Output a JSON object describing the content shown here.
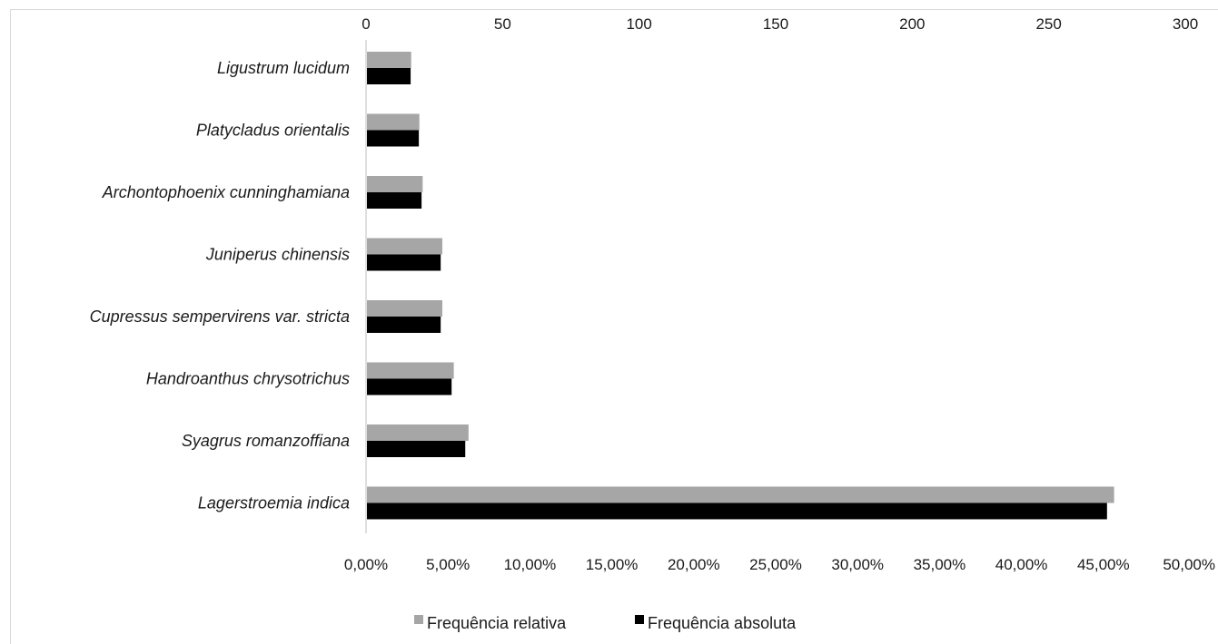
{
  "chart_data": {
    "type": "bar",
    "orientation": "horizontal",
    "categories": [
      "Ligustrum lucidum",
      "Platycladus orientalis",
      "Archontophoenix cunninghamiana",
      "Juniperus chinensis",
      "Cupressus sempervirens var. stricta",
      "Handroanthus chrysotrichus",
      "Syagrus romanzoffiana",
      "Lagerstroemia indica"
    ],
    "series": [
      {
        "name": "Frequência relativa",
        "axis": "bottom",
        "color": "#a6a6a6",
        "values": [
          2.7,
          3.2,
          3.4,
          4.6,
          4.6,
          5.3,
          6.2,
          45.6
        ]
      },
      {
        "name": "Frequência absoluta",
        "axis": "top",
        "color": "#000000",
        "values": [
          16,
          19,
          20,
          27,
          27,
          31,
          36,
          271
        ]
      }
    ],
    "top_axis": {
      "range": [
        0,
        300
      ],
      "ticks": [
        "0",
        "50",
        "100",
        "150",
        "200",
        "250",
        "300"
      ]
    },
    "bottom_axis": {
      "range": [
        0,
        50
      ],
      "ticks": [
        "0,00%",
        "5,00%",
        "10,00%",
        "15,00%",
        "20,00%",
        "25,00%",
        "30,00%",
        "35,00%",
        "40,00%",
        "45,00%",
        "50,00%"
      ]
    },
    "grid": false,
    "legend_position": "bottom"
  }
}
